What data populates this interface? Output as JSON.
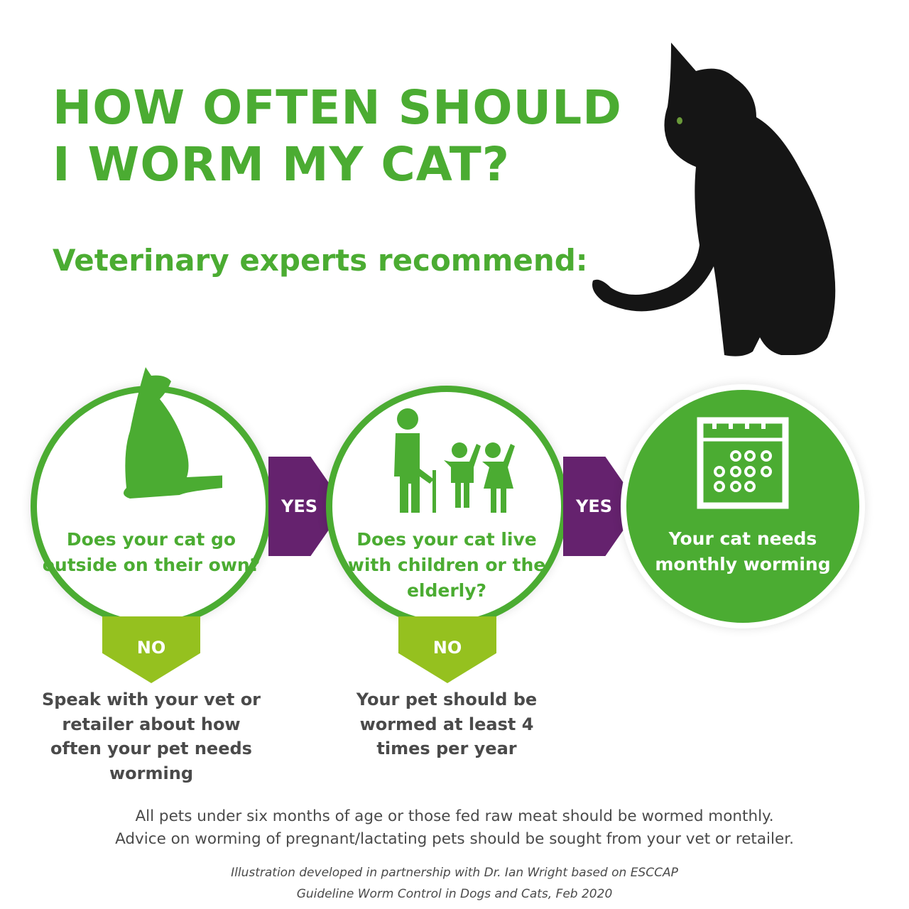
{
  "header": {
    "title_line1": "HOW OFTEN SHOULD",
    "title_line2": "I WORM MY CAT?",
    "subtitle": "Veterinary experts recommend:"
  },
  "flow": {
    "step1": {
      "icon": "cat-silhouette-icon",
      "question": "Does your cat go outside on their own?",
      "yes_label": "YES",
      "no_label": "NO",
      "no_outcome": "Speak with your vet or retailer about how often your pet needs worming"
    },
    "step2": {
      "icon": "elderly-and-children-icon",
      "question": "Does your cat live with children or the elderly?",
      "yes_label": "YES",
      "no_label": "NO",
      "no_outcome": "Your pet should be wormed at least 4 times per year"
    },
    "step3": {
      "icon": "calendar-icon",
      "result": "Your cat needs monthly worming"
    }
  },
  "footer": {
    "note_line1": "All pets under six months of age or those fed raw meat should be wormed monthly.",
    "note_line2": "Advice on worming of pregnant/lactating pets should be sought from your vet or retailer.",
    "credit_line1": "Illustration developed in partnership with Dr. Ian Wright based on ESCCAP",
    "credit_line2": "Guideline Worm Control in Dogs and Cats, Feb 2020"
  },
  "colors": {
    "green": "#4bac32",
    "purple": "#65226e",
    "lime": "#95c11f",
    "text": "#4a4a4a"
  }
}
